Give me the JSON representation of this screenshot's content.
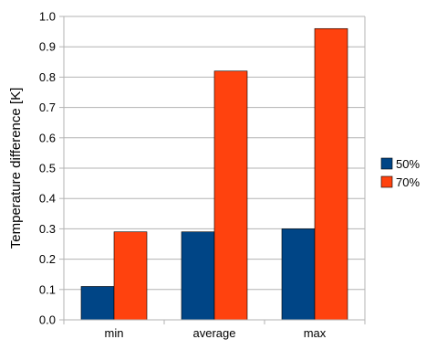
{
  "chart_data": {
    "type": "bar",
    "title": "",
    "xlabel": "",
    "ylabel": "Temperature difference [K]",
    "categories": [
      "min",
      "average",
      "max"
    ],
    "series": [
      {
        "name": "50%",
        "values": [
          0.11,
          0.29,
          0.3
        ],
        "color": "#004586"
      },
      {
        "name": "70%",
        "values": [
          0.29,
          0.82,
          0.96
        ],
        "color": "#ff420e"
      }
    ],
    "ylim": [
      0,
      1.0
    ],
    "yticks": [
      "0.0",
      "0.1",
      "0.2",
      "0.3",
      "0.4",
      "0.5",
      "0.6",
      "0.7",
      "0.8",
      "0.9",
      "1.0"
    ],
    "grid": true,
    "legend_position": "right"
  }
}
